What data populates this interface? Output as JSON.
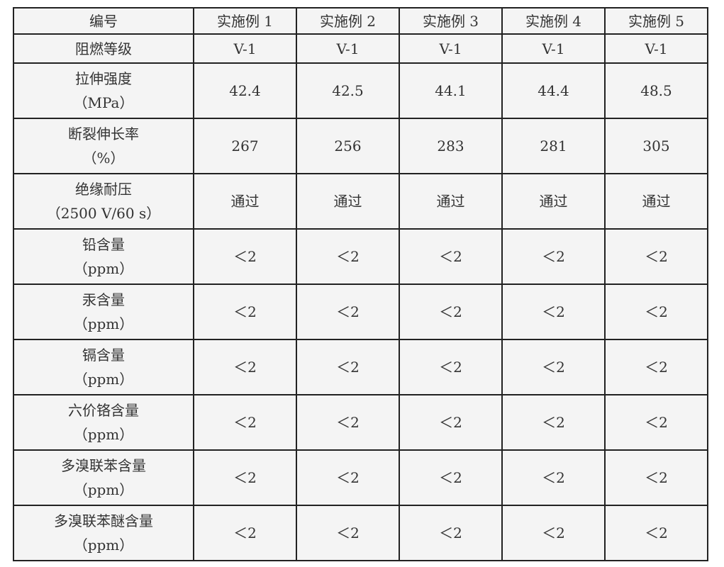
{
  "table": {
    "header": [
      "编号",
      "实施例 1",
      "实施例 2",
      "实施例 3",
      "实施例 4",
      "实施例 5"
    ],
    "rows": [
      {
        "label": [
          "阻燃等级"
        ],
        "values": [
          "V-1",
          "V-1",
          "V-1",
          "V-1",
          "V-1"
        ]
      },
      {
        "label": [
          "拉伸强度",
          "（MPa）"
        ],
        "values": [
          "42.4",
          "42.5",
          "44.1",
          "44.4",
          "48.5"
        ]
      },
      {
        "label": [
          "断裂伸长率",
          "（%）"
        ],
        "values": [
          "267",
          "256",
          "283",
          "281",
          "305"
        ]
      },
      {
        "label": [
          "绝缘耐压",
          "（2500 V/60 s）"
        ],
        "values": [
          "通过",
          "通过",
          "通过",
          "通过",
          "通过"
        ]
      },
      {
        "label": [
          "铅含量",
          "（ppm）"
        ],
        "values": [
          "＜2",
          "＜2",
          "＜2",
          "＜2",
          "＜2"
        ]
      },
      {
        "label": [
          "汞含量",
          "（ppm）"
        ],
        "values": [
          "＜2",
          "＜2",
          "＜2",
          "＜2",
          "＜2"
        ]
      },
      {
        "label": [
          "镉含量",
          "（ppm）"
        ],
        "values": [
          "＜2",
          "＜2",
          "＜2",
          "＜2",
          "＜2"
        ]
      },
      {
        "label": [
          "六价铬含量",
          "（ppm）"
        ],
        "values": [
          "＜2",
          "＜2",
          "＜2",
          "＜2",
          "＜2"
        ]
      },
      {
        "label": [
          "多溴联苯含量",
          "（ppm）"
        ],
        "values": [
          "＜2",
          "＜2",
          "＜2",
          "＜2",
          "＜2"
        ]
      },
      {
        "label": [
          "多溴联苯醚含量",
          "（ppm）"
        ],
        "values": [
          "＜2",
          "＜2",
          "＜2",
          "＜2",
          "＜2"
        ]
      }
    ]
  }
}
